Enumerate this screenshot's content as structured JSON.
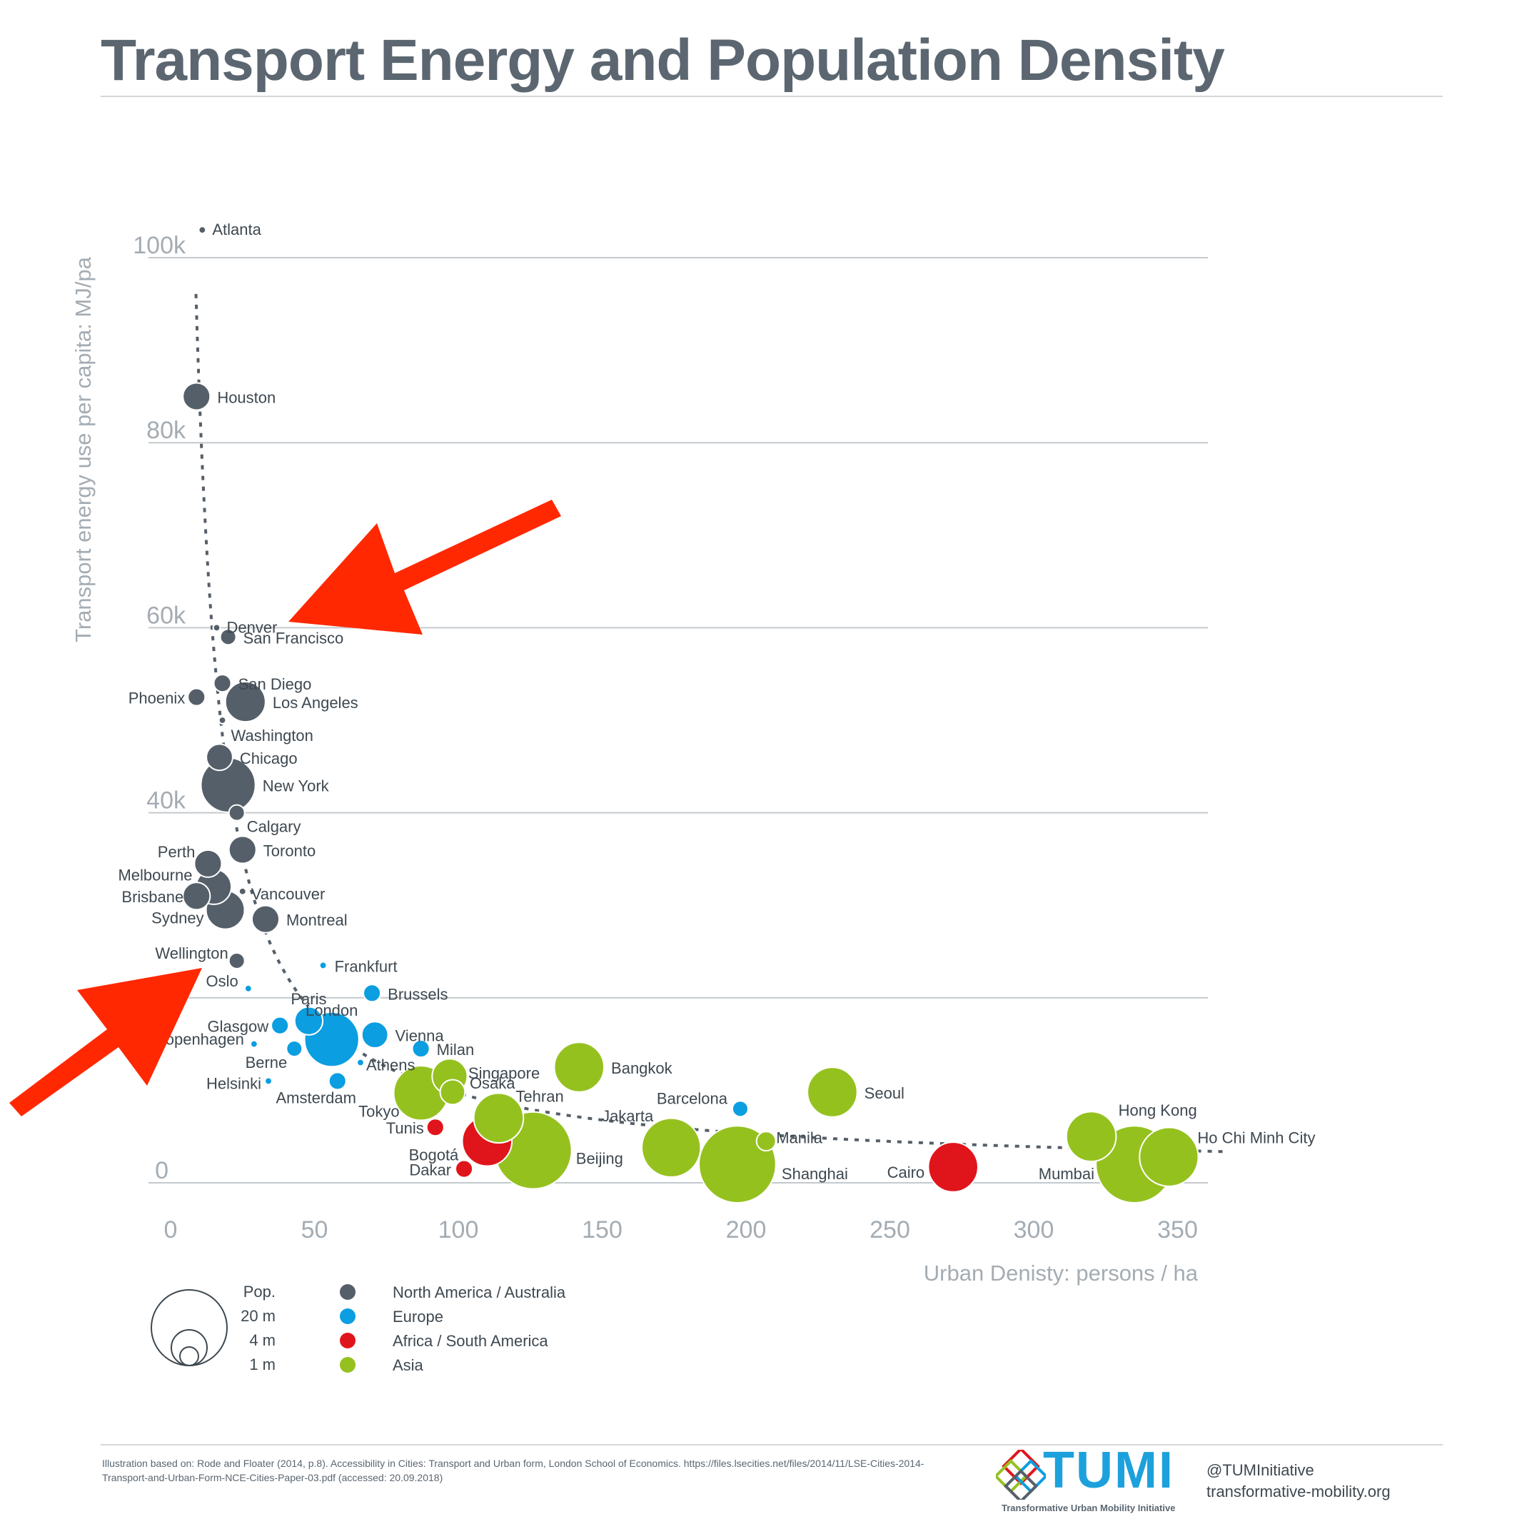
{
  "title": "Transport Energy and Population Density",
  "colors": {
    "north_america_australia": "#555f69",
    "europe": "#0b9ee0",
    "africa_south_america": "#e0151b",
    "asia": "#95c11f",
    "arrow": "#ff2800",
    "axis_text": "#a4acb3",
    "trend": "#555f69"
  },
  "legend": {
    "size_title": "Pop.",
    "size_labels": [
      "20 m",
      "4 m",
      "1 m"
    ],
    "regions": [
      {
        "label": "North America / Australia",
        "color": "#555f69"
      },
      {
        "label": "Europe",
        "color": "#0b9ee0"
      },
      {
        "label": "Africa / South America",
        "color": "#e0151b"
      },
      {
        "label": "Asia",
        "color": "#95c11f"
      }
    ]
  },
  "chart_data": {
    "type": "scatter",
    "bubble": true,
    "xlabel": "Urban Denisty: persons / ha",
    "ylabel": "Transport energy use per capita: MJ/pa",
    "xlim": [
      0,
      360
    ],
    "ylim": [
      0,
      105000
    ],
    "x_ticks": [
      0,
      50,
      100,
      150,
      200,
      250,
      300,
      350
    ],
    "x_tick_labels": [
      "0",
      "50",
      "100",
      "150",
      "200",
      "250",
      "300",
      "350"
    ],
    "y_ticks": [
      0,
      20000,
      40000,
      60000,
      80000,
      100000
    ],
    "y_tick_labels": [
      "0",
      "",
      "40k",
      "60k",
      "80k",
      "100k"
    ],
    "grid": "horizontal",
    "trend_line": "dashed, hyperbolic",
    "points": [
      {
        "city": "Atlanta",
        "region": "north_america_australia",
        "x": 11,
        "y": 103000,
        "pop": 0.2
      },
      {
        "city": "Houston",
        "region": "north_america_australia",
        "x": 9,
        "y": 85000,
        "pop": 3.0
      },
      {
        "city": "Denver",
        "region": "north_america_australia",
        "x": 16,
        "y": 60000,
        "pop": 0.2
      },
      {
        "city": "San Francisco",
        "region": "north_america_australia",
        "x": 20,
        "y": 59000,
        "pop": 1.0
      },
      {
        "city": "San Diego",
        "region": "north_america_australia",
        "x": 18,
        "y": 54000,
        "pop": 1.2
      },
      {
        "city": "Phoenix",
        "region": "north_america_australia",
        "x": 9,
        "y": 52500,
        "pop": 1.2
      },
      {
        "city": "Los Angeles",
        "region": "north_america_australia",
        "x": 26,
        "y": 52000,
        "pop": 6.5
      },
      {
        "city": "Washington",
        "region": "north_america_australia",
        "x": 18,
        "y": 50000,
        "pop": 0.2
      },
      {
        "city": "Chicago",
        "region": "north_america_australia",
        "x": 17,
        "y": 46000,
        "pop": 2.8
      },
      {
        "city": "New York",
        "region": "north_america_australia",
        "x": 20,
        "y": 43000,
        "pop": 12.0
      },
      {
        "city": "Calgary",
        "region": "north_america_australia",
        "x": 23,
        "y": 40000,
        "pop": 1.0
      },
      {
        "city": "Toronto",
        "region": "north_america_australia",
        "x": 25,
        "y": 36000,
        "pop": 3.0
      },
      {
        "city": "Perth",
        "region": "north_america_australia",
        "x": 13,
        "y": 34500,
        "pop": 3.0
      },
      {
        "city": "Melbourne",
        "region": "north_america_australia",
        "x": 15,
        "y": 32000,
        "pop": 5.0
      },
      {
        "city": "Brisbane",
        "region": "north_america_australia",
        "x": 9,
        "y": 31000,
        "pop": 3.0
      },
      {
        "city": "Vancouver",
        "region": "north_america_australia",
        "x": 25,
        "y": 31500,
        "pop": 0.2
      },
      {
        "city": "Sydney",
        "region": "north_america_australia",
        "x": 19,
        "y": 29500,
        "pop": 6.0
      },
      {
        "city": "Montreal",
        "region": "north_america_australia",
        "x": 33,
        "y": 28500,
        "pop": 3.0
      },
      {
        "city": "Wellington",
        "region": "north_america_australia",
        "x": 23,
        "y": 24000,
        "pop": 1.0
      },
      {
        "city": "Frankfurt",
        "region": "europe",
        "x": 53,
        "y": 23500,
        "pop": 0.2
      },
      {
        "city": "Oslo",
        "region": "europe",
        "x": 27,
        "y": 21000,
        "pop": 0.2
      },
      {
        "city": "Brussels",
        "region": "europe",
        "x": 70,
        "y": 20500,
        "pop": 1.2
      },
      {
        "city": "Paris",
        "region": "europe",
        "x": 48,
        "y": 17500,
        "pop": 3.2
      },
      {
        "city": "Glasgow",
        "region": "europe",
        "x": 38,
        "y": 17000,
        "pop": 1.2
      },
      {
        "city": "London",
        "region": "europe",
        "x": 56,
        "y": 15500,
        "pop": 12.0
      },
      {
        "city": "Vienna",
        "region": "europe",
        "x": 71,
        "y": 16000,
        "pop": 2.8
      },
      {
        "city": "Copenhagen",
        "region": "europe",
        "x": 29,
        "y": 15000,
        "pop": 0.2
      },
      {
        "city": "Milan",
        "region": "europe",
        "x": 87,
        "y": 14500,
        "pop": 1.2
      },
      {
        "city": "Berne",
        "region": "europe",
        "x": 43,
        "y": 14500,
        "pop": 1.0
      },
      {
        "city": "Athens",
        "region": "europe",
        "x": 66,
        "y": 13000,
        "pop": 0.2
      },
      {
        "city": "Helsinki",
        "region": "europe",
        "x": 34,
        "y": 11000,
        "pop": 0.2
      },
      {
        "city": "Amsterdam",
        "region": "europe",
        "x": 58,
        "y": 11000,
        "pop": 1.2
      },
      {
        "city": "Barcelona",
        "region": "europe",
        "x": 198,
        "y": 8000,
        "pop": 1.0
      },
      {
        "city": "Tunis",
        "region": "africa_south_america",
        "x": 92,
        "y": 6000,
        "pop": 1.2
      },
      {
        "city": "Bogotá",
        "region": "africa_south_america",
        "x": 110,
        "y": 4500,
        "pop": 10.0
      },
      {
        "city": "Dakar",
        "region": "africa_south_america",
        "x": 102,
        "y": 1500,
        "pop": 1.2
      },
      {
        "city": "Cairo",
        "region": "africa_south_america",
        "x": 272,
        "y": 1700,
        "pop": 10.0
      },
      {
        "city": "Bangkok",
        "region": "asia",
        "x": 142,
        "y": 12500,
        "pop": 10.0
      },
      {
        "city": "Seoul",
        "region": "asia",
        "x": 230,
        "y": 9800,
        "pop": 10.0
      },
      {
        "city": "Singapore",
        "region": "asia",
        "x": 97,
        "y": 11500,
        "pop": 5.0
      },
      {
        "city": "Osaka",
        "region": "asia",
        "x": 98,
        "y": 9800,
        "pop": 2.5
      },
      {
        "city": "Tokyo",
        "region": "asia",
        "x": 87,
        "y": 9700,
        "pop": 12.0
      },
      {
        "city": "Tehran",
        "region": "asia",
        "x": 114,
        "y": 7000,
        "pop": 10.0
      },
      {
        "city": "Beijing",
        "region": "asia",
        "x": 126,
        "y": 3500,
        "pop": 24.0
      },
      {
        "city": "Jakarta",
        "region": "asia",
        "x": 174,
        "y": 3800,
        "pop": 14.0
      },
      {
        "city": "Manila",
        "region": "asia",
        "x": 207,
        "y": 4500,
        "pop": 1.5
      },
      {
        "city": "Shanghai",
        "region": "asia",
        "x": 197,
        "y": 2000,
        "pop": 24.0
      },
      {
        "city": "Hong Kong",
        "region": "asia",
        "x": 320,
        "y": 5000,
        "pop": 10.0
      },
      {
        "city": "Mumbai",
        "region": "asia",
        "x": 335,
        "y": 2000,
        "pop": 24.0
      },
      {
        "city": "Ho Chi Minh City",
        "region": "asia",
        "x": 347,
        "y": 2800,
        "pop": 14.0
      }
    ]
  },
  "footer": {
    "source_note": "Illustration based on: Rode and Floater (2014, p.8). Accessibility in Cities: Transport and Urban form, London School of Economics. https://files.lsecities.net/files/2014/11/LSE-Cities-2014-Transport-and-Urban-Form-NCE-Cities-Paper-03.pdf (accessed: 20.09.2018)",
    "logo_word": "TUMI",
    "logo_tagline": "Transformative Urban Mobility Initiative",
    "twitter": "@TUMInitiative",
    "website": "transformative-mobility.org"
  }
}
